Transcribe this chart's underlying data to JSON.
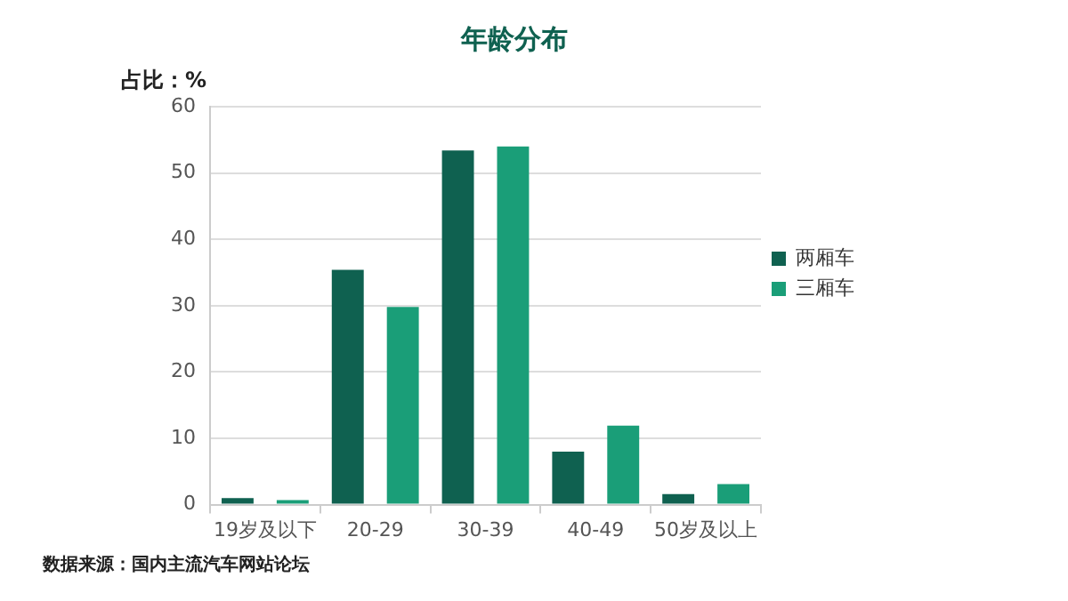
{
  "chart_data": {
    "type": "bar",
    "title": "年龄分布",
    "ylabel": "占比：%",
    "categories": [
      "19岁及以下",
      "20-29",
      "30-39",
      "40-49",
      "50岁及以上"
    ],
    "series": [
      {
        "name": "两厢车",
        "color": "#0f6150",
        "values": [
          1.0,
          35.4,
          53.4,
          8.0,
          1.6
        ]
      },
      {
        "name": "三厢车",
        "color": "#1a9e78",
        "values": [
          0.7,
          29.8,
          54.0,
          11.9,
          3.1
        ]
      }
    ],
    "ylim": [
      0,
      60
    ],
    "yticks": [
      0,
      10,
      20,
      30,
      40,
      50,
      60
    ],
    "grid": "y",
    "legend": "right",
    "annotations": [
      "数据来源：国内主流汽车网站论坛"
    ]
  }
}
